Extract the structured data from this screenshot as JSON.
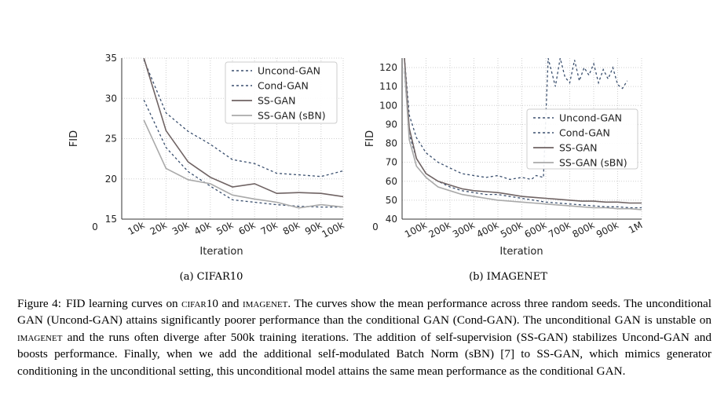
{
  "figure": {
    "label": "Figure 4:",
    "caption_parts": [
      {
        "t": "FID learning curves on ",
        "sc": false
      },
      {
        "t": "cifar",
        "sc": true
      },
      {
        "t": "10 and ",
        "sc": false
      },
      {
        "t": "imagenet",
        "sc": true
      },
      {
        "t": ". The curves show the mean performance across three random seeds. The unconditional GAN (Uncond-GAN) attains significantly poorer performance than the conditional GAN (Cond-GAN). The unconditional GAN is unstable on ",
        "sc": false
      },
      {
        "t": "imagenet",
        "sc": true
      },
      {
        "t": " and the runs often diverge after 500k training iterations. The addition of self-supervision (SS-GAN) stabilizes Uncond-GAN and boosts performance. Finally, when we add the additional self-modulated Batch Norm (sBN) [7] to SS-GAN, which mimics generator conditioning in the unconditional setting, this unconditional model attains the same mean performance as the conditional GAN.",
        "sc": false
      }
    ]
  },
  "colors": {
    "uncond": "#3a4f6e",
    "cond": "#3a4f6e",
    "ss": "#6f6363",
    "ssbn": "#a9a9a9",
    "grid": "#cfcfcf",
    "axis": "#333333"
  },
  "chart_data": [
    {
      "type": "line",
      "subcaption": "(a) CIFAR10",
      "xlabel": "Iteration",
      "ylabel": "FID",
      "xlim": [
        0,
        100000
      ],
      "ylim": [
        15,
        35
      ],
      "x_ticks": [
        0,
        10000,
        20000,
        30000,
        40000,
        50000,
        60000,
        70000,
        80000,
        90000,
        100000
      ],
      "x_tick_labels": [
        "0",
        "10k",
        "20k",
        "30k",
        "40k",
        "50k",
        "60k",
        "70k",
        "80k",
        "90k",
        "100k"
      ],
      "y_ticks": [
        15,
        20,
        25,
        30,
        35
      ],
      "grid": true,
      "legend": "top-right",
      "series": [
        {
          "name": "Uncond-GAN",
          "style": "dashed",
          "color_key": "uncond",
          "x": [
            10000,
            20000,
            30000,
            40000,
            50000,
            60000,
            70000,
            80000,
            90000,
            100000
          ],
          "y": [
            34.8,
            28.2,
            25.9,
            24.3,
            22.4,
            21.9,
            20.7,
            20.5,
            20.3,
            21.0
          ]
        },
        {
          "name": "Cond-GAN",
          "style": "dashed",
          "color_key": "cond",
          "x": [
            10000,
            20000,
            30000,
            40000,
            50000,
            60000,
            70000,
            80000,
            90000,
            100000
          ],
          "y": [
            29.8,
            23.9,
            20.9,
            19.1,
            17.4,
            17.1,
            16.8,
            16.6,
            16.5,
            16.5
          ]
        },
        {
          "name": "SS-GAN",
          "style": "solid",
          "color_key": "ss",
          "x": [
            10000,
            20000,
            30000,
            40000,
            50000,
            60000,
            70000,
            80000,
            90000,
            100000
          ],
          "y": [
            35.0,
            26.0,
            22.1,
            20.2,
            19.0,
            19.4,
            18.2,
            18.3,
            18.2,
            17.8
          ]
        },
        {
          "name": "SS-GAN (sBN)",
          "style": "solid",
          "color_key": "ssbn",
          "x": [
            10000,
            20000,
            30000,
            40000,
            50000,
            60000,
            70000,
            80000,
            90000,
            100000
          ],
          "y": [
            27.3,
            21.3,
            19.9,
            19.4,
            18.0,
            17.5,
            17.1,
            16.4,
            16.8,
            16.5
          ]
        }
      ]
    },
    {
      "type": "line",
      "subcaption": "(b) IMAGENET",
      "xlabel": "Iteration",
      "ylabel": "FID",
      "xlim": [
        0,
        1000000
      ],
      "ylim": [
        40,
        125
      ],
      "x_ticks": [
        0,
        100000,
        200000,
        300000,
        400000,
        500000,
        600000,
        700000,
        800000,
        900000,
        1000000
      ],
      "x_tick_labels": [
        "0",
        "100k",
        "200k",
        "300k",
        "400k",
        "500k",
        "600k",
        "700k",
        "800k",
        "900k",
        "1M"
      ],
      "y_ticks": [
        40,
        50,
        60,
        70,
        80,
        90,
        100,
        110,
        120
      ],
      "grid": true,
      "legend": "center-right",
      "series": [
        {
          "name": "Uncond-GAN",
          "style": "dashed",
          "color_key": "uncond",
          "x": [
            10000,
            30000,
            60000,
            100000,
            150000,
            200000,
            250000,
            300000,
            350000,
            400000,
            450000,
            500000,
            540000,
            560000,
            590000,
            610000,
            640000,
            660000,
            680000,
            700000,
            720000,
            740000,
            760000,
            780000,
            800000,
            820000,
            840000,
            860000,
            880000,
            900000,
            920000,
            940000
          ],
          "y": [
            125,
            95,
            83,
            75,
            70,
            67,
            64,
            63,
            62,
            63,
            61,
            62,
            61,
            63,
            62,
            125,
            110,
            125,
            115,
            112,
            124,
            113,
            120,
            116,
            122,
            112,
            119,
            114,
            120,
            111,
            109,
            113
          ]
        },
        {
          "name": "Cond-GAN",
          "style": "dashed",
          "color_key": "cond",
          "x": [
            10000,
            30000,
            60000,
            100000,
            150000,
            200000,
            250000,
            300000,
            350000,
            400000,
            450000,
            500000,
            550000,
            600000,
            650000,
            700000,
            750000,
            800000,
            850000,
            900000,
            950000,
            1000000
          ],
          "y": [
            118,
            85,
            72,
            64,
            60,
            57,
            55,
            54,
            53,
            53,
            52,
            51,
            50,
            49,
            48.5,
            48,
            47.5,
            47,
            46.5,
            46.5,
            46,
            46
          ]
        },
        {
          "name": "SS-GAN",
          "style": "solid",
          "color_key": "ss",
          "x": [
            10000,
            30000,
            60000,
            100000,
            150000,
            200000,
            250000,
            300000,
            350000,
            400000,
            450000,
            500000,
            550000,
            600000,
            650000,
            700000,
            750000,
            800000,
            850000,
            900000,
            950000,
            1000000
          ],
          "y": [
            125,
            88,
            72,
            64,
            60,
            58,
            56,
            55,
            54.5,
            54,
            53,
            52,
            51.5,
            51,
            50.5,
            50,
            49.5,
            49.5,
            49,
            49,
            48.5,
            48.5
          ]
        },
        {
          "name": "SS-GAN (sBN)",
          "style": "solid",
          "color_key": "ssbn",
          "x": [
            10000,
            30000,
            60000,
            100000,
            150000,
            200000,
            250000,
            300000,
            350000,
            400000,
            450000,
            500000,
            550000,
            600000,
            650000,
            700000,
            750000,
            800000,
            850000,
            900000,
            950000,
            1000000
          ],
          "y": [
            120,
            82,
            68,
            62,
            57,
            55,
            53,
            52,
            51,
            50,
            49.5,
            49,
            48.5,
            48,
            47.5,
            47,
            46.5,
            46,
            46,
            45.5,
            45.5,
            45
          ]
        }
      ]
    }
  ]
}
